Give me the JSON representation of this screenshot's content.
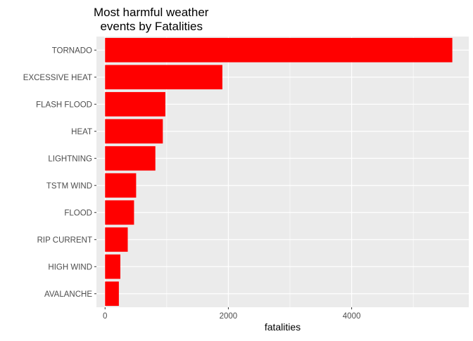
{
  "chart_data": {
    "type": "bar",
    "orientation": "horizontal",
    "title": "Most harmful weather\n  events by Fatalities",
    "xlabel": "fatalities",
    "ylabel": "",
    "categories": [
      "TORNADO",
      "EXCESSIVE HEAT",
      "FLASH FLOOD",
      "HEAT",
      "LIGHTNING",
      "TSTM WIND",
      "FLOOD",
      "RIP CURRENT",
      "HIGH WIND",
      "AVALANCHE"
    ],
    "values": [
      5633,
      1903,
      978,
      937,
      816,
      504,
      470,
      368,
      248,
      224
    ],
    "xlim": [
      -140,
      5900
    ],
    "xticks": [
      0,
      2000,
      4000
    ],
    "bar_color": "#ff0000",
    "panel_background": "#ebebeb",
    "grid": true,
    "legend": "none"
  }
}
